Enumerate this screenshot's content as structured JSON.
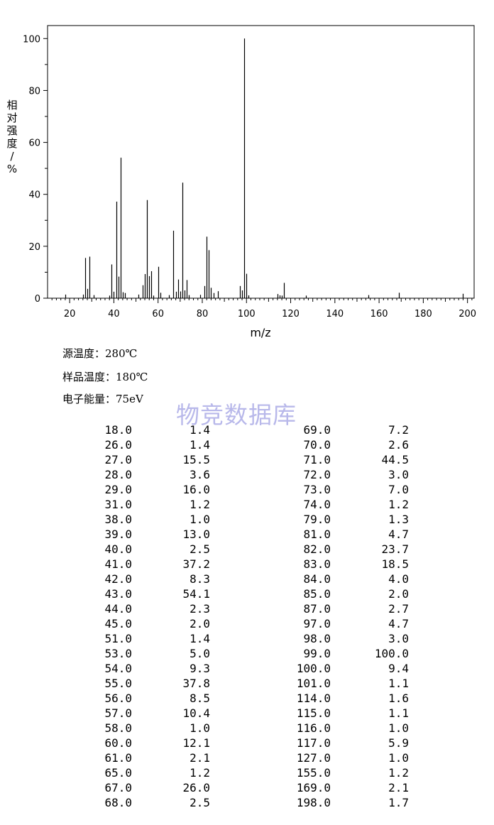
{
  "chart_data": {
    "type": "bar",
    "xlabel": "m/z",
    "ylabel": "相对强度/%",
    "xlim": [
      10,
      203
    ],
    "ylim": [
      0,
      105
    ],
    "x_ticks": [
      20,
      40,
      60,
      80,
      100,
      120,
      140,
      160,
      180,
      200
    ],
    "y_ticks": [
      0,
      20,
      40,
      60,
      80,
      100
    ],
    "grid": false,
    "peaks": [
      [
        18.0,
        1.4
      ],
      [
        26.0,
        1.4
      ],
      [
        27.0,
        15.5
      ],
      [
        28.0,
        3.6
      ],
      [
        29.0,
        16.0
      ],
      [
        31.0,
        1.2
      ],
      [
        38.0,
        1.0
      ],
      [
        39.0,
        13.0
      ],
      [
        40.0,
        2.5
      ],
      [
        41.0,
        37.2
      ],
      [
        42.0,
        8.3
      ],
      [
        43.0,
        54.1
      ],
      [
        44.0,
        2.3
      ],
      [
        45.0,
        2.0
      ],
      [
        51.0,
        1.4
      ],
      [
        53.0,
        5.0
      ],
      [
        54.0,
        9.3
      ],
      [
        55.0,
        37.8
      ],
      [
        56.0,
        8.5
      ],
      [
        57.0,
        10.4
      ],
      [
        58.0,
        1.0
      ],
      [
        60.0,
        12.1
      ],
      [
        61.0,
        2.1
      ],
      [
        65.0,
        1.2
      ],
      [
        67.0,
        26.0
      ],
      [
        68.0,
        2.5
      ],
      [
        69.0,
        7.2
      ],
      [
        70.0,
        2.6
      ],
      [
        71.0,
        44.5
      ],
      [
        72.0,
        3.0
      ],
      [
        73.0,
        7.0
      ],
      [
        74.0,
        1.2
      ],
      [
        79.0,
        1.3
      ],
      [
        81.0,
        4.7
      ],
      [
        82.0,
        23.7
      ],
      [
        83.0,
        18.5
      ],
      [
        84.0,
        4.0
      ],
      [
        85.0,
        2.0
      ],
      [
        87.0,
        2.7
      ],
      [
        97.0,
        4.7
      ],
      [
        98.0,
        3.0
      ],
      [
        99.0,
        100.0
      ],
      [
        100.0,
        9.4
      ],
      [
        101.0,
        1.1
      ],
      [
        114.0,
        1.6
      ],
      [
        115.0,
        1.1
      ],
      [
        116.0,
        1.0
      ],
      [
        117.0,
        5.9
      ],
      [
        127.0,
        1.0
      ],
      [
        155.0,
        1.2
      ],
      [
        169.0,
        2.1
      ],
      [
        198.0,
        1.7
      ]
    ]
  },
  "conditions": {
    "source_temp": "源温度：280℃",
    "sample_temp": "样品温度：180℃",
    "electron_energy": "电子能量：75eV"
  },
  "watermark": "物竞数据库",
  "peak_table": {
    "left": [
      [
        "18.0",
        "1.4"
      ],
      [
        "26.0",
        "1.4"
      ],
      [
        "27.0",
        "15.5"
      ],
      [
        "28.0",
        "3.6"
      ],
      [
        "29.0",
        "16.0"
      ],
      [
        "31.0",
        "1.2"
      ],
      [
        "38.0",
        "1.0"
      ],
      [
        "39.0",
        "13.0"
      ],
      [
        "40.0",
        "2.5"
      ],
      [
        "41.0",
        "37.2"
      ],
      [
        "42.0",
        "8.3"
      ],
      [
        "43.0",
        "54.1"
      ],
      [
        "44.0",
        "2.3"
      ],
      [
        "45.0",
        "2.0"
      ],
      [
        "51.0",
        "1.4"
      ],
      [
        "53.0",
        "5.0"
      ],
      [
        "54.0",
        "9.3"
      ],
      [
        "55.0",
        "37.8"
      ],
      [
        "56.0",
        "8.5"
      ],
      [
        "57.0",
        "10.4"
      ],
      [
        "58.0",
        "1.0"
      ],
      [
        "60.0",
        "12.1"
      ],
      [
        "61.0",
        "2.1"
      ],
      [
        "65.0",
        "1.2"
      ],
      [
        "67.0",
        "26.0"
      ],
      [
        "68.0",
        "2.5"
      ]
    ],
    "right": [
      [
        "69.0",
        "7.2"
      ],
      [
        "70.0",
        "2.6"
      ],
      [
        "71.0",
        "44.5"
      ],
      [
        "72.0",
        "3.0"
      ],
      [
        "73.0",
        "7.0"
      ],
      [
        "74.0",
        "1.2"
      ],
      [
        "79.0",
        "1.3"
      ],
      [
        "81.0",
        "4.7"
      ],
      [
        "82.0",
        "23.7"
      ],
      [
        "83.0",
        "18.5"
      ],
      [
        "84.0",
        "4.0"
      ],
      [
        "85.0",
        "2.0"
      ],
      [
        "87.0",
        "2.7"
      ],
      [
        "97.0",
        "4.7"
      ],
      [
        "98.0",
        "3.0"
      ],
      [
        "99.0",
        "100.0"
      ],
      [
        "100.0",
        "9.4"
      ],
      [
        "101.0",
        "1.1"
      ],
      [
        "114.0",
        "1.6"
      ],
      [
        "115.0",
        "1.1"
      ],
      [
        "116.0",
        "1.0"
      ],
      [
        "117.0",
        "5.9"
      ],
      [
        "127.0",
        "1.0"
      ],
      [
        "155.0",
        "1.2"
      ],
      [
        "169.0",
        "2.1"
      ],
      [
        "198.0",
        "1.7"
      ]
    ]
  }
}
